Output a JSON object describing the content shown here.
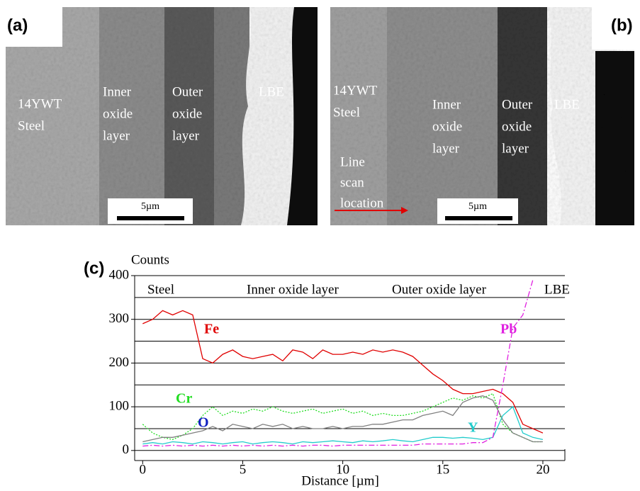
{
  "panel_a": {
    "label": "(a)",
    "regions": [
      [
        "14YWT",
        "Steel"
      ],
      [
        "Inner",
        "oxide",
        "layer"
      ],
      [
        "Outer",
        "oxide",
        "layer"
      ],
      [
        "LBE"
      ]
    ],
    "scale_bar": "5µm"
  },
  "panel_b": {
    "label": "(b)",
    "regions": [
      [
        "14YWT",
        "Steel"
      ],
      [
        "Inner",
        "oxide",
        "layer"
      ],
      [
        "Outer",
        "oxide",
        "layer"
      ],
      [
        "LBE"
      ]
    ],
    "annotation": [
      "Line",
      "scan",
      "location"
    ],
    "scale_bar": "5µm"
  },
  "chart_data": {
    "type": "line",
    "panel_label": "(c)",
    "ylabel": "Counts",
    "xlabel": "Distance [µm]",
    "regions": [
      "Steel",
      "Inner oxide layer",
      "Outer oxide layer",
      "LBE"
    ],
    "xlim": [
      -0.4,
      21.1
    ],
    "ylim": [
      -23,
      400
    ],
    "xticks": [
      0,
      5,
      10,
      15,
      20
    ],
    "yticks": [
      0,
      100,
      200,
      300,
      400
    ],
    "ygrid": [
      0,
      50,
      100,
      150,
      200,
      250,
      300,
      350,
      400
    ],
    "x": [
      0,
      0.5,
      1,
      1.5,
      2,
      2.5,
      3,
      3.5,
      4,
      4.5,
      5,
      5.5,
      6,
      6.5,
      7,
      7.5,
      8,
      8.5,
      9,
      9.5,
      10,
      10.5,
      11,
      11.5,
      12,
      12.5,
      13,
      13.5,
      14,
      14.5,
      15,
      15.5,
      16,
      16.5,
      17,
      17.5,
      18,
      18.5,
      19,
      19.5,
      20
    ],
    "series": [
      {
        "name": "Fe",
        "color": "#e00000",
        "style": "solid",
        "values": [
          290,
          300,
          320,
          310,
          320,
          310,
          210,
          200,
          220,
          230,
          215,
          210,
          215,
          220,
          205,
          230,
          225,
          210,
          230,
          220,
          220,
          225,
          220,
          230,
          225,
          230,
          225,
          215,
          195,
          175,
          160,
          140,
          130,
          130,
          135,
          140,
          130,
          110,
          60,
          50,
          40
        ]
      },
      {
        "name": "Cr",
        "color": "#22dd22",
        "style": "dotted",
        "values": [
          60,
          40,
          30,
          25,
          35,
          50,
          80,
          100,
          80,
          90,
          85,
          95,
          90,
          100,
          90,
          85,
          90,
          95,
          85,
          90,
          95,
          85,
          90,
          80,
          85,
          80,
          80,
          85,
          90,
          100,
          110,
          120,
          115,
          125,
          120,
          130,
          60,
          40,
          30,
          20,
          20
        ]
      },
      {
        "name": "O",
        "color": "#808080",
        "style": "solid",
        "values": [
          20,
          25,
          30,
          30,
          35,
          40,
          45,
          55,
          45,
          60,
          55,
          50,
          60,
          55,
          60,
          50,
          55,
          50,
          50,
          55,
          50,
          55,
          55,
          60,
          60,
          65,
          70,
          70,
          80,
          85,
          90,
          80,
          110,
          120,
          125,
          115,
          70,
          40,
          30,
          20,
          20
        ]
      },
      {
        "name": "Y",
        "color": "#22cccc",
        "style": "solid",
        "values": [
          15,
          18,
          15,
          20,
          18,
          15,
          20,
          18,
          15,
          18,
          20,
          15,
          18,
          20,
          18,
          15,
          20,
          18,
          20,
          22,
          20,
          18,
          22,
          20,
          22,
          25,
          22,
          20,
          25,
          30,
          30,
          28,
          30,
          28,
          25,
          30,
          80,
          100,
          40,
          30,
          25
        ]
      },
      {
        "name": "Pb",
        "color": "#e020e0",
        "style": "dashdot",
        "values": [
          10,
          12,
          10,
          12,
          10,
          12,
          10,
          12,
          10,
          12,
          10,
          12,
          10,
          12,
          10,
          12,
          10,
          12,
          12,
          10,
          12,
          12,
          12,
          12,
          12,
          12,
          12,
          12,
          15,
          15,
          15,
          15,
          15,
          18,
          18,
          30,
          150,
          280,
          310,
          390,
          null
        ]
      }
    ]
  }
}
